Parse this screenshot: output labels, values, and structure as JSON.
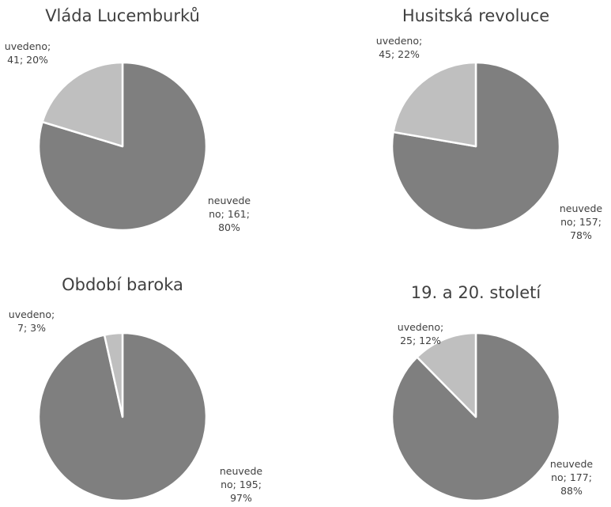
{
  "chart_data": [
    {
      "type": "pie",
      "title": "Vláda Lucemburků",
      "categories": [
        "neuvedeno",
        "uvedeno"
      ],
      "values": [
        161,
        41
      ],
      "value_labels": [
        "neuvedeno; 161; 80%",
        "uvedeno; 41; 20%"
      ],
      "colors": [
        "#7f7f7f",
        "#bfbfbf"
      ]
    },
    {
      "type": "pie",
      "title": "Husitská revoluce",
      "categories": [
        "neuvedeno",
        "uvedeno"
      ],
      "values": [
        157,
        45
      ],
      "value_labels": [
        "neuvedeno; 157; 78%",
        "uvedeno; 45; 22%"
      ],
      "colors": [
        "#7f7f7f",
        "#bfbfbf"
      ]
    },
    {
      "type": "pie",
      "title": "Období baroka",
      "categories": [
        "neuvedeno",
        "uvedeno"
      ],
      "values": [
        195,
        7
      ],
      "value_labels": [
        "neuvedeno; 195; 97%",
        "uvedeno; 7; 3%"
      ],
      "colors": [
        "#7f7f7f",
        "#bfbfbf"
      ]
    },
    {
      "type": "pie",
      "title": "19. a 20. století",
      "categories": [
        "neuvedeno",
        "uvedeno"
      ],
      "values": [
        177,
        25
      ],
      "value_labels": [
        "neuvedeno; 177; 88%",
        "uvedeno; 25; 12%"
      ],
      "colors": [
        "#7f7f7f",
        "#bfbfbf"
      ]
    }
  ]
}
